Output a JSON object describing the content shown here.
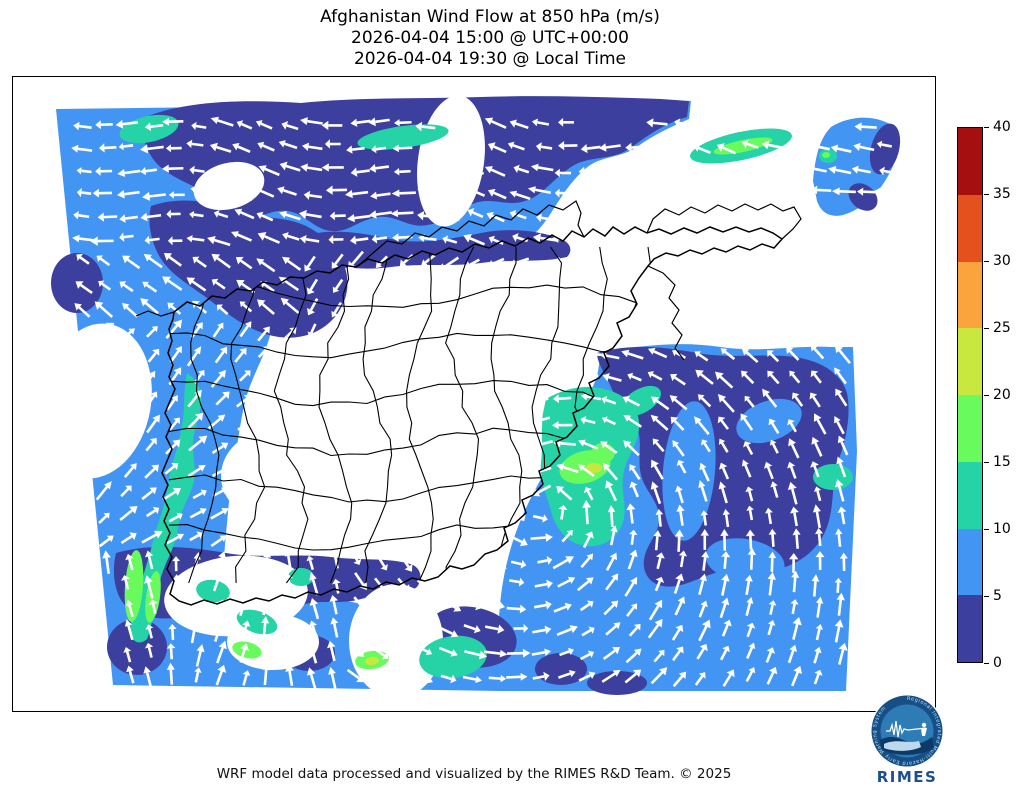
{
  "title": {
    "line1": "Afghanistan Wind Flow at 850 hPa (m/s)",
    "line2": "2026-04-04 15:00 @ UTC+00:00",
    "line3": "2026-04-04 19:30 @ Local Time"
  },
  "footer": {
    "credit": "WRF model data processed and visualized by the RIMES R&D Team. © 2025"
  },
  "colorbar": {
    "units": "m/s",
    "min": 0,
    "max": 40,
    "ticks": [
      "0",
      "5",
      "10",
      "15",
      "20",
      "25",
      "30",
      "35",
      "40"
    ],
    "segments": [
      {
        "from": 0,
        "to": 5,
        "color": "#3d3f9e"
      },
      {
        "from": 5,
        "to": 10,
        "color": "#4395f3"
      },
      {
        "from": 10,
        "to": 15,
        "color": "#25d3a7"
      },
      {
        "from": 15,
        "to": 20,
        "color": "#69fa5e"
      },
      {
        "from": 20,
        "to": 25,
        "color": "#c9e83f"
      },
      {
        "from": 25,
        "to": 30,
        "color": "#fba33c"
      },
      {
        "from": 30,
        "to": 35,
        "color": "#e5511d"
      },
      {
        "from": 35,
        "to": 40,
        "color": "#a50f0f"
      }
    ]
  },
  "logo": {
    "org": "RIMES",
    "ring_text": "Regional Integrated Multi-Hazard Early Warning System"
  },
  "chart_data": {
    "type": "heatmap",
    "subtype": "wind-speed filled contours with quiver vector overlay on map",
    "variable": "Wind speed at 850 hPa",
    "units": "m/s",
    "region": "Afghanistan and surrounding WRF model domain",
    "valid_time_utc": "2026-04-04 15:00",
    "valid_time_local": "2026-04-04 19:30",
    "levels": [
      0,
      5,
      10,
      15,
      20,
      25,
      30,
      35,
      40
    ],
    "palette": [
      "#3d3f9e",
      "#4395f3",
      "#25d3a7",
      "#69fa5e",
      "#c9e83f",
      "#fba33c",
      "#e5511d",
      "#a50f0f"
    ],
    "observed_speed_range_ms": [
      0,
      25
    ],
    "legend_position": "right vertical colorbar",
    "flow_features": [
      "westerly flow (arrows pointing west) along the northern edge of the domain, speeds mostly 0-10 m/s",
      "cyclonic (counterclockwise) circulation centered near the eastern Afghanistan border ~ (71E) with a 10-20 m/s teal/green core",
      "northward flow across the whole southern third of the domain, 5-15 m/s with local 15-22 m/s streaks",
      "northeastward flow with a 10-20 m/s streak in the far-west (Iran border) sector",
      "wind shading masked (white) over most of central Afghanistan where speeds are lowest",
      "small detached 5-15 m/s patch with westward arrows at the domain's northeast corner"
    ],
    "boundaries": "Afghanistan national and province boundaries plus neighbouring country borders drawn in black"
  }
}
